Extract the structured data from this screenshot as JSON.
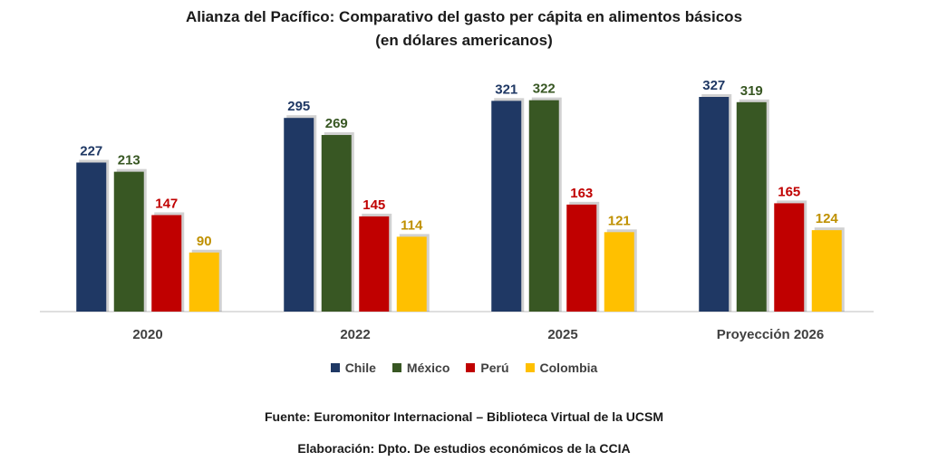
{
  "chart_data": {
    "type": "bar",
    "title_line1": "Alianza del Pacífico: Comparativo del gasto per cápita en alimentos básicos",
    "title_line2": "(en dólares americanos)",
    "categories": [
      "2020",
      "2022",
      "2025",
      "Proyección 2026"
    ],
    "series": [
      {
        "name": "Chile",
        "color": "#1F3864",
        "values": [
          227,
          295,
          321,
          327
        ]
      },
      {
        "name": "México",
        "color": "#385723",
        "values": [
          213,
          269,
          322,
          319
        ]
      },
      {
        "name": "Perú",
        "color": "#C00000",
        "values": [
          147,
          145,
          163,
          165
        ]
      },
      {
        "name": "Colombia",
        "color": "#FFC000",
        "values": [
          90,
          114,
          121,
          124
        ]
      }
    ],
    "label_colors": [
      "#1F3864",
      "#385723",
      "#C00000",
      "#BF9000"
    ],
    "ylim": [
      0,
      327
    ],
    "grid": false,
    "legend_position": "bottom"
  },
  "source_text": "Fuente: Euromonitor Internacional – Biblioteca Virtual de la UCSM",
  "elaboration_text": "Elaboración: Dpto. De estudios económicos de la CCIA"
}
